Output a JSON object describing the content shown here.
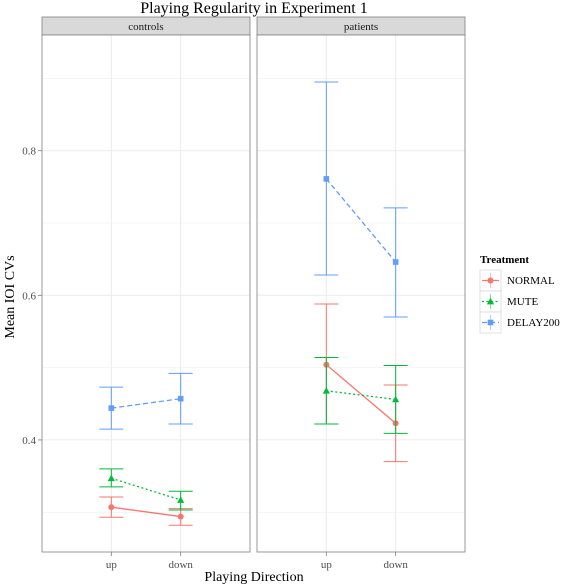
{
  "chart_data": {
    "type": "line",
    "title": "Playing Regularity in Experiment 1",
    "xlabel": "Playing Direction",
    "ylabel": "Mean IOI CVs",
    "categories": [
      "up",
      "down"
    ],
    "ylim": [
      0.245,
      0.96
    ],
    "yticks": [
      0.4,
      0.6,
      0.8
    ],
    "ytick_labels": [
      "0.4",
      "0.6",
      "0.8"
    ],
    "grid": true,
    "legend_title": "Treatment",
    "legend_position": "right",
    "panels": [
      {
        "label": "controls",
        "series": [
          {
            "name": "NORMAL",
            "values": [
              0.307,
              0.294
            ],
            "lower": [
              0.293,
              0.282
            ],
            "upper": [
              0.321,
              0.305
            ]
          },
          {
            "name": "MUTE",
            "values": [
              0.347,
              0.317
            ],
            "lower": [
              0.335,
              0.303
            ],
            "upper": [
              0.36,
              0.329
            ]
          },
          {
            "name": "DELAY200",
            "values": [
              0.444,
              0.457
            ],
            "lower": [
              0.415,
              0.422
            ],
            "upper": [
              0.473,
              0.492
            ]
          }
        ]
      },
      {
        "label": "patients",
        "series": [
          {
            "name": "NORMAL",
            "values": [
              0.504,
              0.423
            ],
            "lower": [
              0.422,
              0.37
            ],
            "upper": [
              0.588,
              0.476
            ]
          },
          {
            "name": "MUTE",
            "values": [
              0.468,
              0.456
            ],
            "lower": [
              0.422,
              0.409
            ],
            "upper": [
              0.514,
              0.503
            ]
          },
          {
            "name": "DELAY200",
            "values": [
              0.761,
              0.646
            ],
            "lower": [
              0.628,
              0.57
            ],
            "upper": [
              0.895,
              0.721
            ]
          }
        ]
      }
    ],
    "series_styles": [
      {
        "name": "NORMAL",
        "color": "#F8766D",
        "line": "solid",
        "shape": "circle"
      },
      {
        "name": "MUTE",
        "color": "#00BA38",
        "line": "dotted",
        "shape": "triangle"
      },
      {
        "name": "DELAY200",
        "color": "#619CFF",
        "line": "dashed",
        "shape": "square"
      }
    ],
    "colors": {
      "panel_background": "#ffffff",
      "grid": "#ebebeb",
      "panel_border": "#7f7f7f",
      "strip_background": "#d9d9d9"
    }
  }
}
